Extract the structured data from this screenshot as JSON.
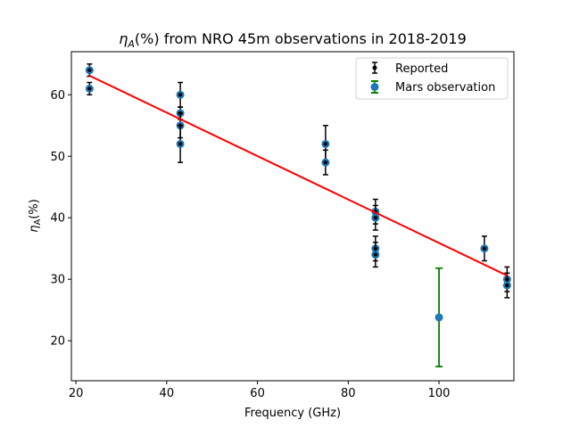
{
  "chart_data": {
    "type": "scatter",
    "title_sym": "η",
    "title_sub": "A",
    "title_rest": "(%) from NRO 45m observations in 2018-2019",
    "xlabel": "Frequency (GHz)",
    "ylabel_sym": "η",
    "ylabel_sub": "A",
    "ylabel_rest": "(%)",
    "xlim": [
      19,
      116.5
    ],
    "ylim": [
      13.5,
      67
    ],
    "xticks": [
      20,
      40,
      60,
      80,
      100
    ],
    "yticks": [
      20,
      30,
      40,
      50,
      60
    ],
    "series": [
      {
        "name": "Reported",
        "marker_color": "#1f77b4",
        "err_color": "#000000",
        "points": [
          {
            "x": 23,
            "y": 64,
            "err": 1
          },
          {
            "x": 23,
            "y": 61,
            "err": 1
          },
          {
            "x": 43,
            "y": 60,
            "err": 2
          },
          {
            "x": 43,
            "y": 57,
            "err": 1
          },
          {
            "x": 43,
            "y": 55,
            "err": 2
          },
          {
            "x": 43,
            "y": 52,
            "err": 3
          },
          {
            "x": 75,
            "y": 52,
            "err": 3
          },
          {
            "x": 75,
            "y": 49,
            "err": 2
          },
          {
            "x": 86,
            "y": 41,
            "err": 2
          },
          {
            "x": 86,
            "y": 40,
            "err": 2
          },
          {
            "x": 86,
            "y": 35,
            "err": 2
          },
          {
            "x": 86,
            "y": 34,
            "err": 2
          },
          {
            "x": 110,
            "y": 35,
            "err": 2
          },
          {
            "x": 115,
            "y": 30,
            "err": 2
          },
          {
            "x": 115,
            "y": 29,
            "err": 2
          }
        ]
      },
      {
        "name": "Mars observation",
        "marker_color": "#1f77b4",
        "err_color": "#008000",
        "points": [
          {
            "x": 100,
            "y": 23.8,
            "err": 8
          }
        ]
      }
    ],
    "fit_line": {
      "color": "#ff0000",
      "points": [
        [
          23,
          63.1
        ],
        [
          115,
          30.6
        ]
      ]
    },
    "legend": {
      "position": "top-right",
      "entries": [
        "Reported",
        "Mars observation"
      ]
    }
  }
}
